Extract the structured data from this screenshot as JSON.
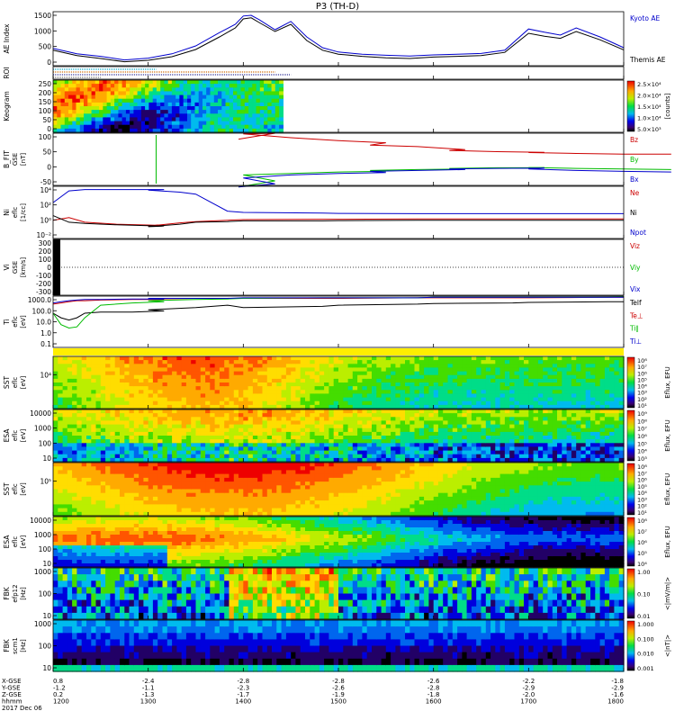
{
  "title": "P3 (TH-D)",
  "chart_data": {
    "type": "line",
    "title": "P3 (TH-D)",
    "time_axis": {
      "rows": [
        {
          "label": "X-GSE",
          "values": [
            "0.8",
            "-2.4",
            "-2.8",
            "-2.8",
            "-2.6",
            "-2.2",
            "-1.8"
          ]
        },
        {
          "label": "Y-GSE",
          "values": [
            "-1.2",
            "-1.1",
            "-2.3",
            "-2.6",
            "-2.8",
            "-2.9",
            "-2.9"
          ]
        },
        {
          "label": "Z-GSE",
          "values": [
            "0.2",
            "-1.3",
            "-1.7",
            "-1.9",
            "-1.8",
            "-2.0",
            "-1.6"
          ]
        },
        {
          "label": "hhmm",
          "values": [
            "1200",
            "1300",
            "1400",
            "1500",
            "1600",
            "1700",
            "1800"
          ]
        }
      ],
      "date": "2017 Dec 06",
      "xlim": [
        1200,
        1800
      ]
    },
    "panels": [
      {
        "id": "ae",
        "ylabel": "AE Index",
        "yticks": [
          "1500",
          "1000",
          "500",
          "0"
        ],
        "ylim": [
          0,
          1500
        ],
        "type": "line",
        "x": [
          1200,
          1215,
          1230,
          1245,
          1300,
          1315,
          1330,
          1345,
          1355,
          1400,
          1405,
          1410,
          1420,
          1430,
          1440,
          1450,
          1500,
          1515,
          1530,
          1545,
          1600,
          1615,
          1630,
          1645,
          1700,
          1710,
          1720,
          1730,
          1745,
          1800
        ],
        "series": [
          {
            "name": "Kyoto AE",
            "color": "#0000cc",
            "values": [
              480,
              330,
              260,
              160,
              210,
              330,
              550,
              920,
              1150,
              1380,
              1400,
              1280,
              1000,
              1230,
              800,
              500,
              380,
              320,
              290,
              270,
              300,
              320,
              340,
              430,
              1020,
              930,
              850,
              1050,
              800,
              500
            ]
          },
          {
            "name": "Themis AE",
            "color": "#000000",
            "values": [
              430,
              280,
              200,
              110,
              150,
              250,
              450,
              800,
              1050,
              1300,
              1330,
              1200,
              950,
              1150,
              700,
              430,
              320,
              260,
              220,
              200,
              240,
              260,
              280,
              370,
              900,
              820,
              760,
              950,
              720,
              440
            ]
          }
        ]
      },
      {
        "id": "roi",
        "ylabel": "ROI",
        "type": "bars",
        "bars": [
          {
            "color": "#00aacc",
            "x": [
              1200,
              1265
            ]
          },
          {
            "color": "#cc6600",
            "x": [
              1200,
              1380
            ]
          },
          {
            "color": "#333399",
            "x": [
              1200,
              1390
            ]
          },
          {
            "color": "#777777",
            "x": [
              1200,
              1230
            ]
          }
        ]
      },
      {
        "id": "keogram",
        "ylabel": "Keogram",
        "yticks": [
          "250",
          "200",
          "150",
          "100",
          "50",
          "0"
        ],
        "ylim": [
          0,
          250
        ],
        "xlim": [
          1200,
          1425
        ],
        "zlabel": "[counts]",
        "ztick_labels": [
          "2.5×10⁴",
          "2.0×10⁴",
          "1.5×10⁴",
          "1.0×10⁴",
          "5.0×10³"
        ],
        "type": "heatmap"
      },
      {
        "id": "bfit",
        "ylabel": "B_FIT",
        "unit": "[nT]",
        "coord": "GSE",
        "yticks": [
          "100",
          "50",
          "0",
          "-50"
        ],
        "ylim": [
          -75,
          100
        ],
        "type": "line",
        "x": [
          1357,
          1380,
          1400,
          1430,
          1460,
          1490,
          1520,
          1550,
          1580,
          1610,
          1640,
          1670,
          1700,
          1730,
          1760,
          1790,
          1800
        ],
        "series": [
          {
            "name": "Bz",
            "color": "#cc0000",
            "values": [
              80,
              100,
              98,
              85,
              75,
              68,
              60,
              55,
              45,
              42,
              38,
              36,
              35,
              32,
              30,
              30,
              30
            ]
          },
          {
            "name": "By",
            "color": "#00bb00",
            "values": [
              -80,
              -60,
              -40,
              -35,
              -30,
              -28,
              -25,
              -22,
              -20,
              -18,
              -16,
              -15,
              -15,
              -18,
              -20,
              -22,
              -20
            ]
          },
          {
            "name": "Bx",
            "color": "#0000cc",
            "values": [
              -80,
              -70,
              -50,
              -40,
              -35,
              -32,
              -28,
              -25,
              -22,
              -20,
              -18,
              -17,
              -20,
              -25,
              -28,
              -30,
              -28
            ]
          }
        ],
        "spike": {
          "x": 1265,
          "color": "#00bb00"
        }
      },
      {
        "id": "ni",
        "ylabel": "Ni",
        "unit": "[1/cc]",
        "coord": "eflc",
        "yticks": [
          "10⁴",
          "10²",
          "10⁰",
          "10⁻²"
        ],
        "ylim_log10": [
          -3,
          5
        ],
        "type": "line",
        "x": [
          1200,
          1210,
          1220,
          1240,
          1270,
          1300,
          1320,
          1330,
          1350,
          1400,
          1450,
          1500,
          1550,
          1600,
          1650,
          1700,
          1750,
          1800
        ],
        "series": [
          {
            "name": "Ne",
            "color": "#cc0000",
            "values_log10": [
              -0.2,
              0.2,
              -0.5,
              -0.8,
              -1.0,
              -1.1,
              -0.6,
              -0.4,
              -0.2,
              -0.1,
              -0.05,
              -0.05,
              0.0,
              0.0,
              0.0,
              0.0,
              0.0,
              0.0
            ]
          },
          {
            "name": "Ni",
            "color": "#000000",
            "values_log10": [
              0.5,
              -0.5,
              -0.7,
              -0.9,
              -1.1,
              -1.2,
              -0.8,
              -0.5,
              -0.4,
              -0.3,
              -0.3,
              -0.25,
              -0.2,
              -0.2,
              -0.2,
              -0.2,
              -0.2,
              -0.2
            ]
          },
          {
            "name": "Npot",
            "color": "#0000cc",
            "values_log10": [
              2.5,
              4.3,
              4.5,
              4.5,
              4.5,
              4.4,
              4.1,
              3.8,
              1.2,
              1.0,
              0.9,
              0.85,
              0.8,
              0.8,
              0.8,
              0.8,
              0.8,
              0.8
            ]
          }
        ]
      },
      {
        "id": "vi",
        "ylabel": "Vi",
        "unit": "[km/s]",
        "coord": "GSE",
        "yticks": [
          "300",
          "200",
          "100",
          "0",
          "-100",
          "-200",
          "-300"
        ],
        "ylim": [
          -350,
          350
        ],
        "type": "line",
        "series": [
          {
            "name": "Viz",
            "color": "#cc0000"
          },
          {
            "name": "Viy",
            "color": "#00bb00"
          },
          {
            "name": "Vix",
            "color": "#0000cc"
          }
        ]
      },
      {
        "id": "ti",
        "ylabel": "Ti",
        "unit": "[eV]",
        "coord": "eflc",
        "yticks": [
          "1000.0",
          "100.0",
          "10.0",
          "1.0",
          "0.1"
        ],
        "ylim_log10": [
          -1,
          3.5
        ],
        "type": "line",
        "x": [
          1200,
          1205,
          1210,
          1215,
          1220,
          1230,
          1250,
          1270,
          1300,
          1330,
          1350,
          1400,
          1450,
          1500,
          1550,
          1600,
          1650,
          1700,
          1750,
          1800
        ],
        "series": [
          {
            "name": "Telf",
            "color": "#000000",
            "values_log10": [
              2.0,
              1.6,
              1.4,
              1.6,
              2.0,
              2.1,
              2.1,
              2.2,
              2.3,
              2.5,
              2.7,
              2.5,
              2.6,
              2.7,
              2.8,
              2.85,
              2.9,
              2.95,
              3.0,
              3.0
            ]
          },
          {
            "name": "Te⊥",
            "color": "#cc0000",
            "values_log10": [
              2.8,
              2.9,
              3.0,
              3.1,
              3.1,
              3.15,
              3.2,
              3.2,
              3.25,
              3.3,
              3.3,
              3.3,
              3.3,
              3.3,
              3.35,
              3.35,
              3.35,
              3.35,
              3.4,
              3.4
            ]
          },
          {
            "name": "Ti∥",
            "color": "#00bb00",
            "values_log10": [
              2.0,
              1.0,
              0.7,
              0.8,
              1.6,
              2.7,
              2.9,
              3.0,
              3.1,
              3.2,
              3.25,
              3.3,
              3.35,
              3.35,
              3.35,
              3.4,
              3.4,
              3.4,
              3.4,
              3.45
            ]
          },
          {
            "name": "Ti⊥",
            "color": "#0000cc",
            "values_log10": [
              2.9,
              3.0,
              3.1,
              3.15,
              3.2,
              3.2,
              3.25,
              3.25,
              3.3,
              3.3,
              3.3,
              3.35,
              3.35,
              3.35,
              3.35,
              3.4,
              3.4,
              3.4,
              3.4,
              3.4
            ]
          }
        ]
      },
      {
        "id": "sst_e",
        "ylabel": "SST",
        "unit": "[eV]",
        "coord": "eflc",
        "yticks": [
          "10⁴"
        ],
        "type": "heatmap",
        "zlabel": "Eflux, EFU",
        "ztick_labels": [
          "10⁸",
          "10⁷",
          "10⁶",
          "10⁵",
          "10⁴",
          "10³",
          "10²",
          "10¹"
        ]
      },
      {
        "id": "esa_e",
        "ylabel": "ESA",
        "unit": "[eV]",
        "coord": "eflc",
        "yticks": [
          "10000",
          "1000",
          "100",
          "10"
        ],
        "type": "heatmap",
        "zlabel": "Eflux, EFU",
        "ztick_labels": [
          "10⁹",
          "10⁸",
          "10⁷",
          "10⁶",
          "10⁵",
          "10⁴",
          "10³"
        ]
      },
      {
        "id": "sst_i",
        "ylabel": "SST",
        "unit": "[eV]",
        "coord": "eflc",
        "yticks": [
          "10⁵"
        ],
        "type": "heatmap",
        "zlabel": "Eflux, EFU",
        "ztick_labels": [
          "10⁸",
          "10⁷",
          "10⁶",
          "10⁵",
          "10⁴",
          "10³",
          "10²",
          "10¹"
        ]
      },
      {
        "id": "esa_i",
        "ylabel": "ESA",
        "unit": "[eV]",
        "coord": "eflc",
        "yticks": [
          "10000",
          "1000",
          "100",
          "10"
        ],
        "type": "heatmap",
        "zlabel": "Eflux, EFU",
        "ztick_labels": [
          "10⁸",
          "10⁷",
          "10⁶",
          "10⁵",
          "10⁴"
        ]
      },
      {
        "id": "fbk_e",
        "ylabel": "FBK",
        "unit": "[Hz]",
        "coord": "efp12",
        "yticks": [
          "1000",
          "100",
          "10"
        ],
        "type": "heatmap",
        "zlabel": "<|mV/m|>",
        "ztick_labels": [
          "1.00",
          "0.10",
          "0.01"
        ]
      },
      {
        "id": "fbk_b",
        "ylabel": "FBK",
        "unit": "[Hz]",
        "coord": "scm1",
        "yticks": [
          "1000",
          "100",
          "10"
        ],
        "type": "heatmap",
        "zlabel": "<|nT|>",
        "ztick_labels": [
          "1.000",
          "0.100",
          "0.010",
          "0.001"
        ]
      }
    ]
  }
}
